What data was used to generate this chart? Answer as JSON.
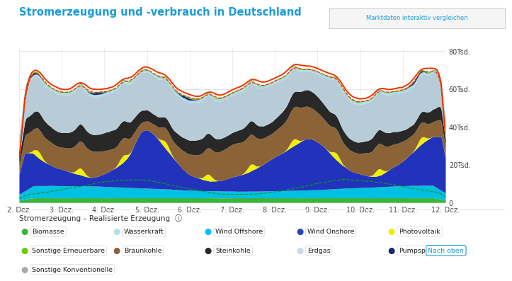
{
  "title": "Stromerzeugung und -verbrauch in Deutschland",
  "title_color": "#1a9cd8",
  "button_text": "Marktdaten interaktiv vergleichen",
  "subtitle_label": "Stromerzeugung – Realisierte Erzeugung",
  "x_labels": [
    "2. Dez.",
    "3. Dez.",
    "4. Dez.",
    "5. Dez.",
    "6. Dez.",
    "7. Dez.",
    "8. Dez.",
    "9. Dez.",
    "10. Dez.",
    "11. Dez.",
    "12. Dez."
  ],
  "y_ticks": [
    "0",
    "20Tsd.",
    "40Tsd.",
    "60Tsd.",
    "80Tsd."
  ],
  "y_tick_vals": [
    0,
    20000,
    40000,
    60000,
    80000
  ],
  "ylim": [
    0,
    82000
  ],
  "background_color": "#ffffff",
  "legend_items": [
    {
      "label": "Biomasse",
      "color": "#3cb43c"
    },
    {
      "label": "Wasserkraft",
      "color": "#aee0f0"
    },
    {
      "label": "Wind Offshore",
      "color": "#00bfff"
    },
    {
      "label": "Wind Onshore",
      "color": "#2244cc"
    },
    {
      "label": "Photovoltaik",
      "color": "#eeee00"
    },
    {
      "label": "Sonstige Erneuerbare",
      "color": "#66cc00"
    },
    {
      "label": "Braunkohle",
      "color": "#8B6337"
    },
    {
      "label": "Steinkohle",
      "color": "#2a2a2a"
    },
    {
      "label": "Erdgas",
      "color": "#c8d8e8"
    },
    {
      "label": "Pumpspeicher",
      "color": "#1a2a6c"
    }
  ]
}
